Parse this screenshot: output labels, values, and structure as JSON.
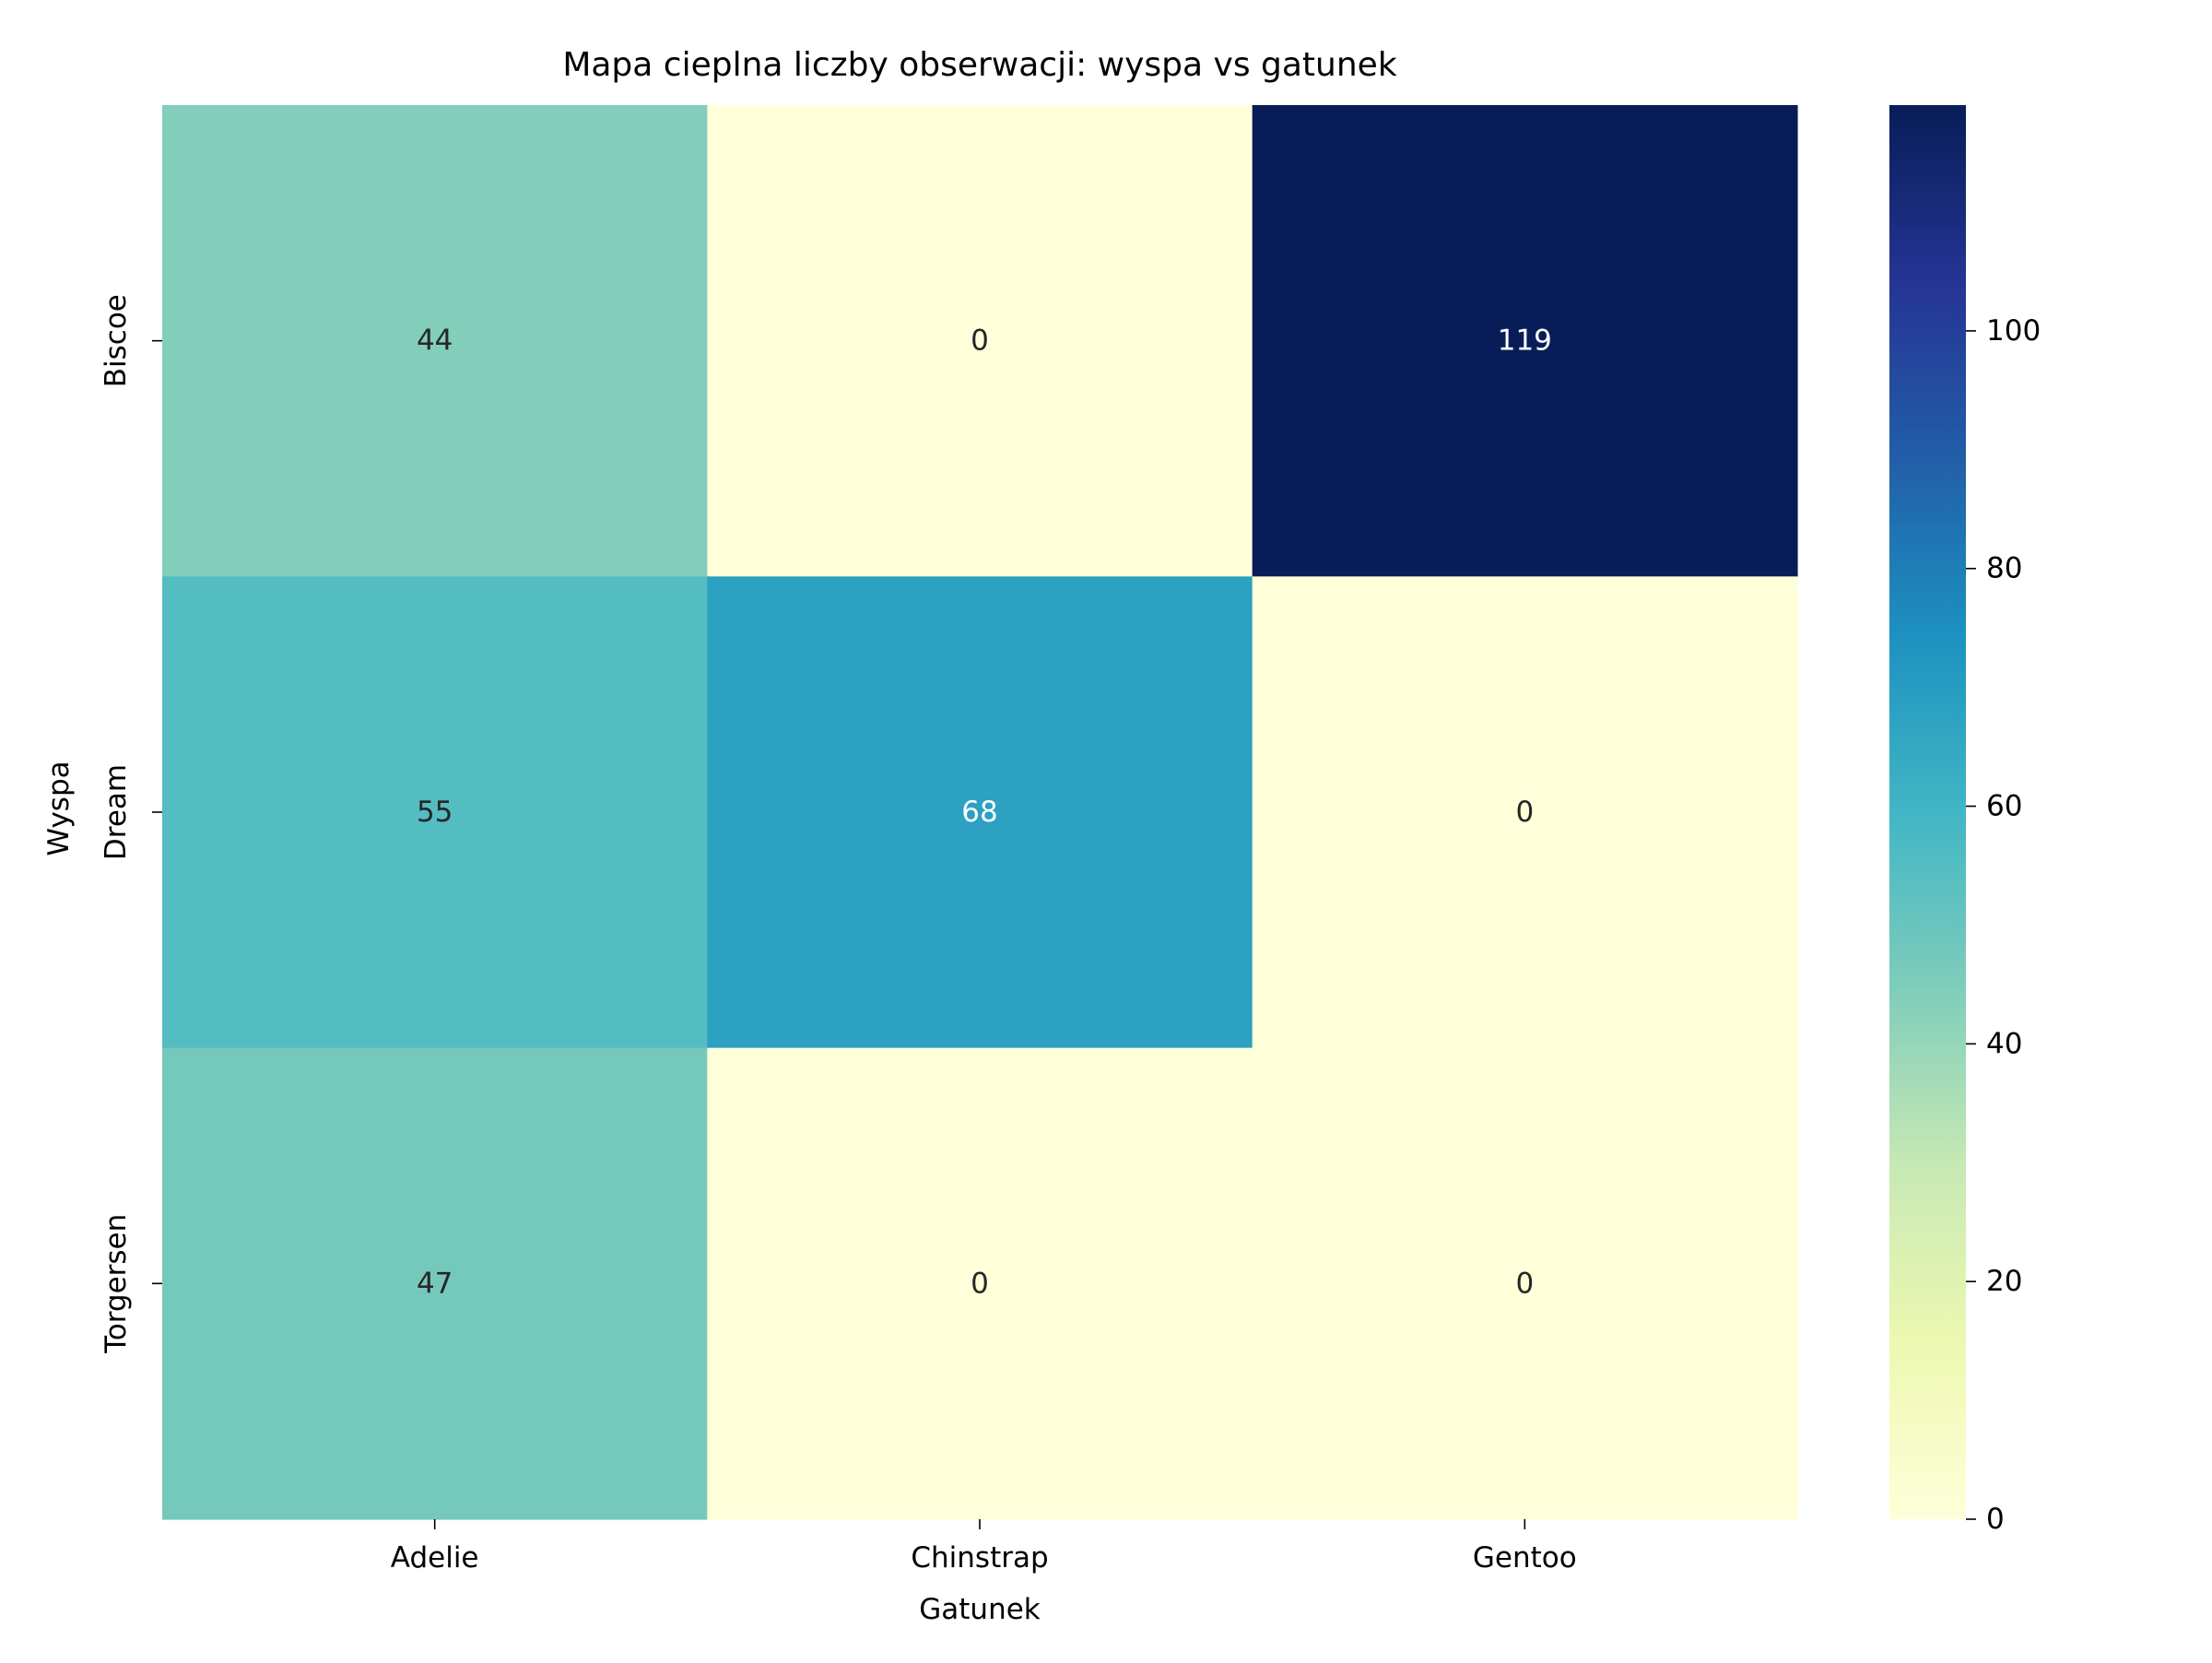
{
  "chart_data": {
    "type": "heatmap",
    "title": "Mapa cieplna liczby obserwacji: wyspa vs gatunek",
    "xlabel": "Gatunek",
    "ylabel": "Wyspa",
    "x_categories": [
      "Adelie",
      "Chinstrap",
      "Gentoo"
    ],
    "y_categories": [
      "Biscoe",
      "Dream",
      "Torgersen"
    ],
    "values": [
      [
        44,
        0,
        119
      ],
      [
        55,
        68,
        0
      ],
      [
        47,
        0,
        0
      ]
    ],
    "colormap": "YlGnBu",
    "colorbar": {
      "vmin": 0,
      "vmax": 119,
      "ticks": [
        "0",
        "20",
        "40",
        "60",
        "80",
        "100"
      ]
    },
    "colors": {
      "background": "#ffffff",
      "text_dark": "#262626",
      "text_light": "#ffffff",
      "axis": "#000000"
    },
    "grid": false
  }
}
